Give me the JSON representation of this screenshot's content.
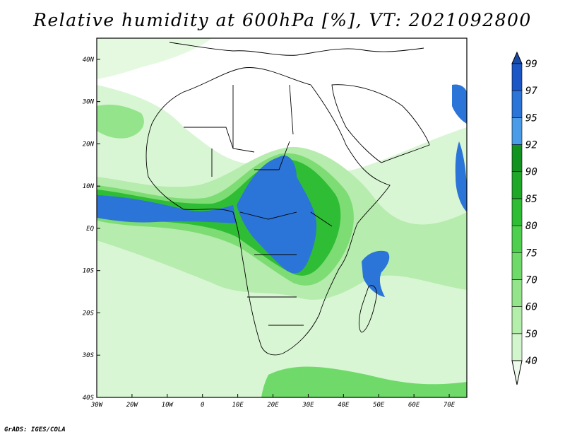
{
  "title": "Relative humidity at 600hPa [%], VT: 2021092800",
  "credit": "GrADS: IGES/COLA",
  "map": {
    "projection": "latlon",
    "lon_range": [
      -30,
      75
    ],
    "lat_range": [
      -40,
      45
    ],
    "x_ticks": [
      "30W",
      "20W",
      "10W",
      "0",
      "10E",
      "20E",
      "30E",
      "40E",
      "50E",
      "60E",
      "70E"
    ],
    "y_ticks": [
      "40N",
      "30N",
      "20N",
      "10N",
      "EQ",
      "10S",
      "20S",
      "30S",
      "40S"
    ],
    "field": "relative humidity (%)",
    "boundaries": "country outlines in black"
  },
  "colorbar": {
    "levels": [
      "40",
      "50",
      "60",
      "70",
      "75",
      "80",
      "85",
      "90",
      "92",
      "95",
      "97",
      "99"
    ],
    "colors": [
      "#eefbec",
      "#d3f5cd",
      "#b3eeaa",
      "#93e48a",
      "#6fda69",
      "#4ecf4d",
      "#2ebd33",
      "#1fa728",
      "#12921f",
      "#4a9ce8",
      "#2b74d8",
      "#1a56c6",
      "#184aa8"
    ],
    "extends": "both"
  }
}
